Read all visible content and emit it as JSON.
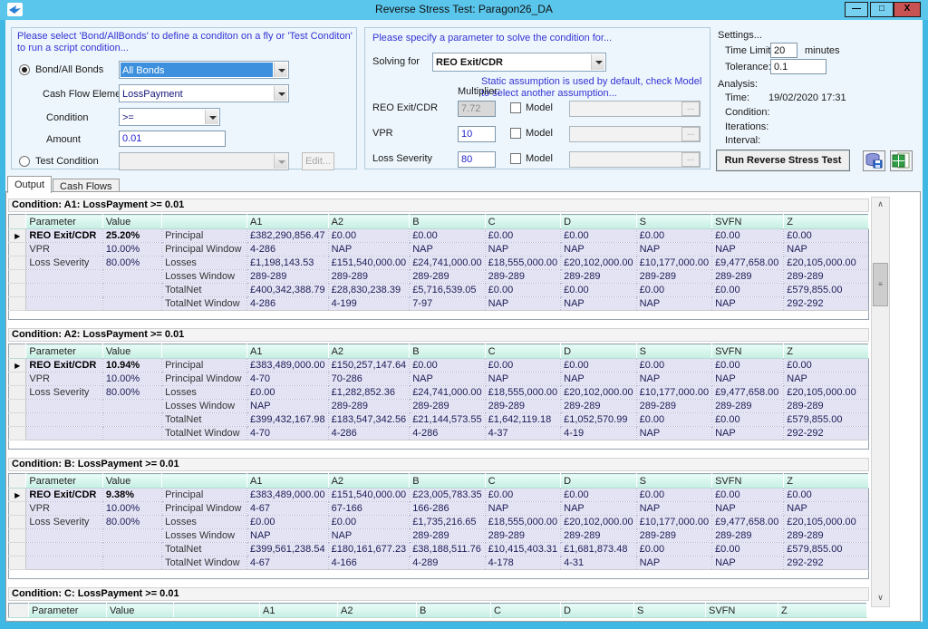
{
  "window": {
    "title": "Reverse Stress Test: Paragon26_DA"
  },
  "condition_panel": {
    "instruction": "Please select 'Bond/AllBonds' to define a conditon on a fly or 'Test Conditon' to run a script condition...",
    "bond_radio": "Bond/All Bonds",
    "bond_select": "All Bonds",
    "cash_flow_label": "Cash Flow Element",
    "cash_flow_select": "LossPayment",
    "condition_label": "Condition",
    "condition_select": ">=",
    "amount_label": "Amount",
    "amount_value": "0.01",
    "test_radio": "Test Condition",
    "edit_button": "Edit..."
  },
  "solver_panel": {
    "instruction": "Please specify a parameter to solve the condition for...",
    "solving_for_label": "Solving for",
    "solving_for_select": "REO Exit/CDR",
    "multiplier_label": "Multiplier:",
    "note": "Static assumption is used by default, check Model to select another assumption...",
    "model_label": "Model",
    "ellipsis": "...",
    "rows": [
      {
        "label": "REO Exit/CDR",
        "value": "7.72"
      },
      {
        "label": "VPR",
        "value": "10"
      },
      {
        "label": "Loss Severity",
        "value": "80"
      }
    ]
  },
  "settings_panel": {
    "settings_header": "Settings...",
    "time_limit_label": "Time Limit:",
    "time_limit_value": "20",
    "minutes_label": "minutes",
    "tolerance_label": "Tolerance:",
    "tolerance_value": "0.1",
    "analysis_header": "Analysis:",
    "time_label": "Time:",
    "time_value": "19/02/2020 17:31",
    "condition_label": "Condition:",
    "iterations_label": "Iterations:",
    "interval_label": "Interval:",
    "run_button": "Run Reverse Stress Test"
  },
  "tabs": [
    {
      "label": "Output",
      "active": true
    },
    {
      "label": "Cash Flows",
      "active": false
    }
  ],
  "output": {
    "param_header": "Parameter",
    "value_header": "Value",
    "bond_columns": [
      "A1",
      "A2",
      "B",
      "C",
      "D",
      "S",
      "SVFN",
      "Z"
    ],
    "metric_labels": [
      "Principal",
      "Principal Window",
      "Losses",
      "Losses Window",
      "TotalNet",
      "TotalNet Window"
    ],
    "conditions": [
      {
        "title": "Condition: A1: LossPayment >= 0.01",
        "parameters": [
          {
            "name": "REO Exit/CDR",
            "value": "25.20%"
          },
          {
            "name": "VPR",
            "value": "10.00%"
          },
          {
            "name": "Loss Severity",
            "value": "80.00%"
          }
        ],
        "values": [
          [
            "£382,290,856.47",
            "£0.00",
            "£0.00",
            "£0.00",
            "£0.00",
            "£0.00",
            "£0.00",
            "£0.00"
          ],
          [
            "4-286",
            "NAP",
            "NAP",
            "NAP",
            "NAP",
            "NAP",
            "NAP",
            "NAP"
          ],
          [
            "£1,198,143.53",
            "£151,540,000.00",
            "£24,741,000.00",
            "£18,555,000.00",
            "£20,102,000.00",
            "£10,177,000.00",
            "£9,477,658.00",
            "£20,105,000.00"
          ],
          [
            "289-289",
            "289-289",
            "289-289",
            "289-289",
            "289-289",
            "289-289",
            "289-289",
            "289-289"
          ],
          [
            "£400,342,388.79",
            "£28,830,238.39",
            "£5,716,539.05",
            "£0.00",
            "£0.00",
            "£0.00",
            "£0.00",
            "£579,855.00"
          ],
          [
            "4-286",
            "4-199",
            "7-97",
            "NAP",
            "NAP",
            "NAP",
            "NAP",
            "292-292"
          ]
        ]
      },
      {
        "title": "Condition: A2: LossPayment >= 0.01",
        "parameters": [
          {
            "name": "REO Exit/CDR",
            "value": "10.94%"
          },
          {
            "name": "VPR",
            "value": "10.00%"
          },
          {
            "name": "Loss Severity",
            "value": "80.00%"
          }
        ],
        "values": [
          [
            "£383,489,000.00",
            "£150,257,147.64",
            "£0.00",
            "£0.00",
            "£0.00",
            "£0.00",
            "£0.00",
            "£0.00"
          ],
          [
            "4-70",
            "70-286",
            "NAP",
            "NAP",
            "NAP",
            "NAP",
            "NAP",
            "NAP"
          ],
          [
            "£0.00",
            "£1,282,852.36",
            "£24,741,000.00",
            "£18,555,000.00",
            "£20,102,000.00",
            "£10,177,000.00",
            "£9,477,658.00",
            "£20,105,000.00"
          ],
          [
            "NAP",
            "289-289",
            "289-289",
            "289-289",
            "289-289",
            "289-289",
            "289-289",
            "289-289"
          ],
          [
            "£399,432,167.98",
            "£183,547,342.56",
            "£21,144,573.55",
            "£1,642,119.18",
            "£1,052,570.99",
            "£0.00",
            "£0.00",
            "£579,855.00"
          ],
          [
            "4-70",
            "4-286",
            "4-286",
            "4-37",
            "4-19",
            "NAP",
            "NAP",
            "292-292"
          ]
        ]
      },
      {
        "title": "Condition: B: LossPayment >= 0.01",
        "parameters": [
          {
            "name": "REO Exit/CDR",
            "value": "9.38%"
          },
          {
            "name": "VPR",
            "value": "10.00%"
          },
          {
            "name": "Loss Severity",
            "value": "80.00%"
          }
        ],
        "values": [
          [
            "£383,489,000.00",
            "£151,540,000.00",
            "£23,005,783.35",
            "£0.00",
            "£0.00",
            "£0.00",
            "£0.00",
            "£0.00"
          ],
          [
            "4-67",
            "67-166",
            "166-286",
            "NAP",
            "NAP",
            "NAP",
            "NAP",
            "NAP"
          ],
          [
            "£0.00",
            "£0.00",
            "£1,735,216.65",
            "£18,555,000.00",
            "£20,102,000.00",
            "£10,177,000.00",
            "£9,477,658.00",
            "£20,105,000.00"
          ],
          [
            "NAP",
            "NAP",
            "289-289",
            "289-289",
            "289-289",
            "289-289",
            "289-289",
            "289-289"
          ],
          [
            "£399,561,238.54",
            "£180,161,677.23",
            "£38,188,511.76",
            "£10,415,403.31",
            "£1,681,873.48",
            "£0.00",
            "£0.00",
            "£579,855.00"
          ],
          [
            "4-67",
            "4-166",
            "4-289",
            "4-178",
            "4-31",
            "NAP",
            "NAP",
            "292-292"
          ]
        ]
      },
      {
        "title": "Condition: C: LossPayment >= 0.01",
        "partial": true,
        "parameters": [],
        "values": []
      }
    ]
  },
  "colors": {
    "titlebar": "#5ac6ec",
    "frame": "#40b8e4",
    "accent_text": "#3434d4",
    "header_teal": "#c5eee2",
    "row_lavender": "#e4e3f4",
    "close_red": "#c95252",
    "selection_blue": "#3c90dd"
  }
}
